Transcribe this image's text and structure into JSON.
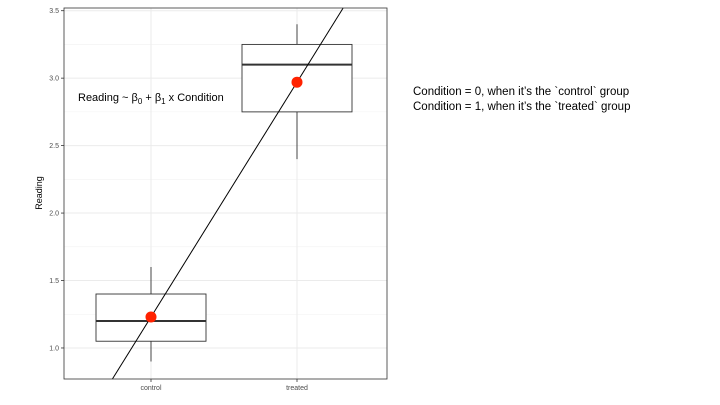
{
  "chart_data": {
    "type": "boxplot",
    "ylabel": "Reading",
    "xlabel": "",
    "ylim": [
      0.77,
      3.52
    ],
    "yticks": [
      "1.0",
      "1.5",
      "2.0",
      "2.5",
      "3.0",
      "3.5"
    ],
    "categories": [
      "control",
      "treated"
    ],
    "boxes": [
      {
        "category": "control",
        "whisker_low": 0.9,
        "q1": 1.05,
        "median": 1.2,
        "q3": 1.4,
        "whisker_high": 1.6,
        "mean": 1.23
      },
      {
        "category": "treated",
        "whisker_low": 2.4,
        "q1": 2.75,
        "median": 3.1,
        "q3": 3.25,
        "whisker_high": 3.4,
        "mean": 2.97
      }
    ],
    "regression_line": {
      "intercept": 1.23,
      "slope": 1.74
    },
    "mean_color": "#ff2200",
    "grid": true
  },
  "formula": {
    "prefix": "Reading ~ β",
    "sub0": "0",
    "middle": " + β",
    "sub1": "1",
    "suffix": " x Condition"
  },
  "notes": [
    "Condition = 0, when it’s the `control` group",
    "Condition = 1, when it’s the `treated` group"
  ]
}
